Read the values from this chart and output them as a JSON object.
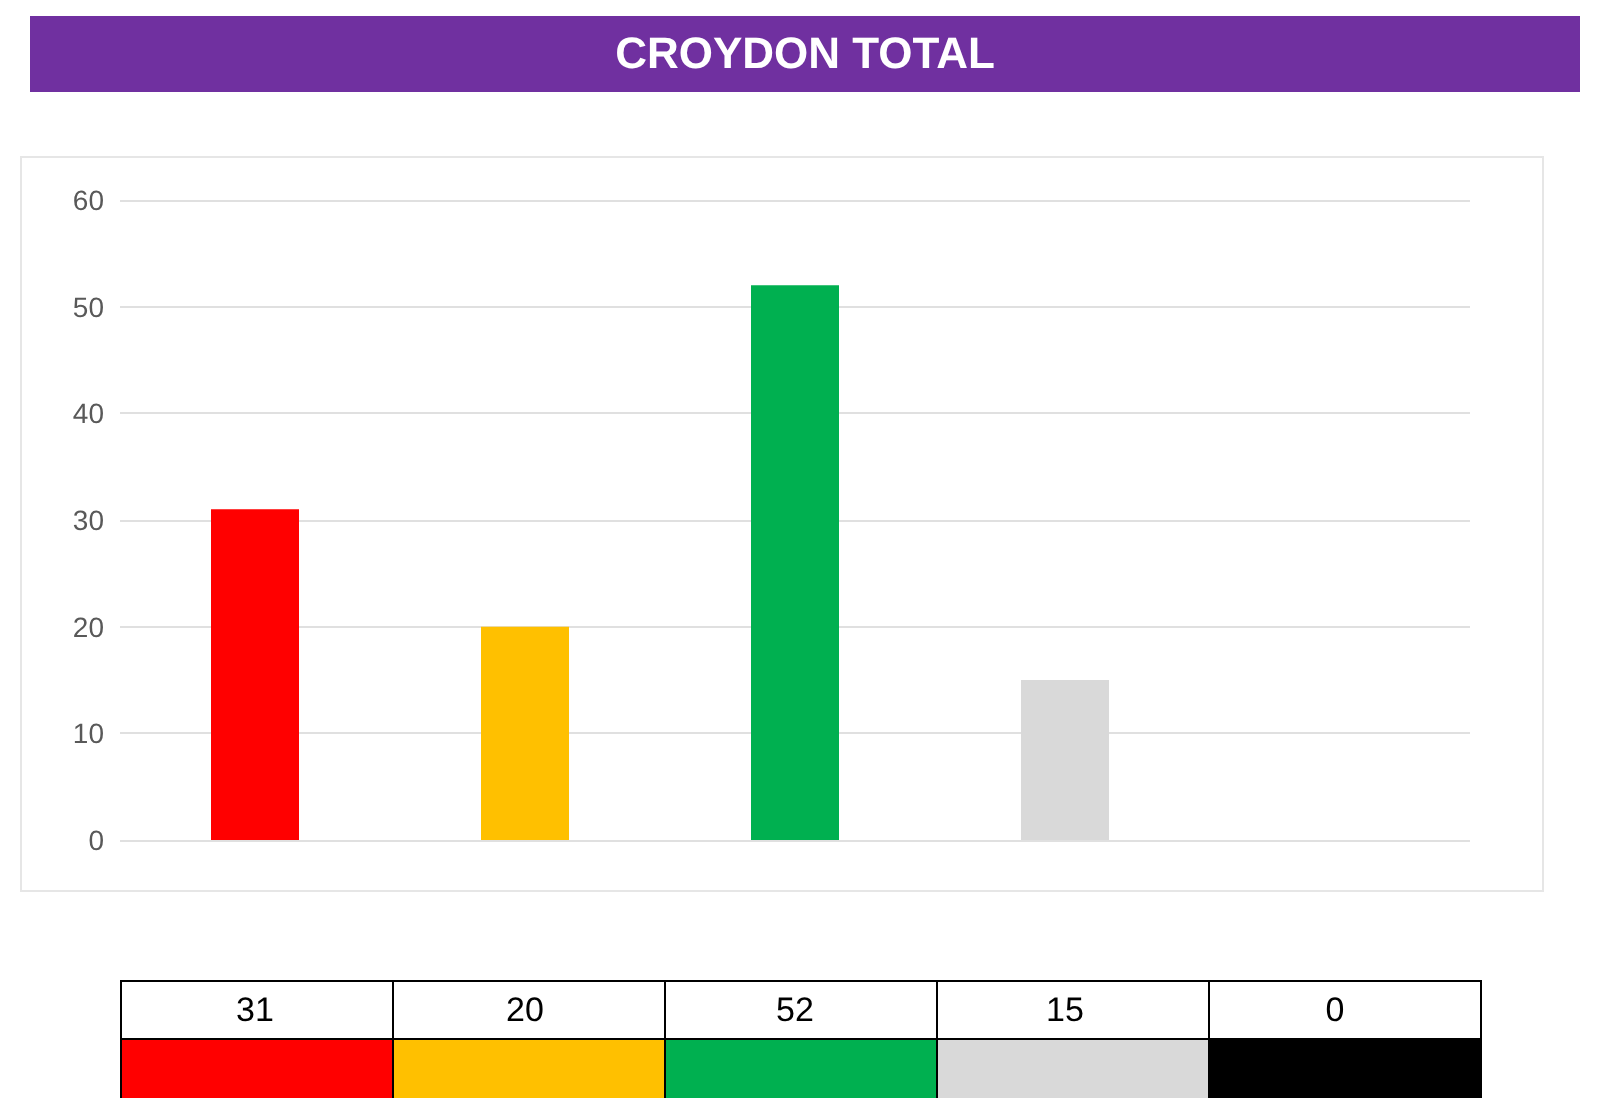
{
  "chart_data": {
    "type": "bar",
    "title": "CROYDON TOTAL",
    "categories": [
      null,
      null,
      null,
      null,
      null
    ],
    "values": [
      31,
      20,
      52,
      15,
      0
    ],
    "colors": [
      "#ff0000",
      "#ffc000",
      "#00b050",
      "#d9d9d9",
      "#000000"
    ],
    "ylim": [
      0,
      60
    ],
    "yticks": [
      0,
      10,
      20,
      30,
      40,
      50,
      60
    ],
    "grid": "y",
    "data_labels": true
  }
}
